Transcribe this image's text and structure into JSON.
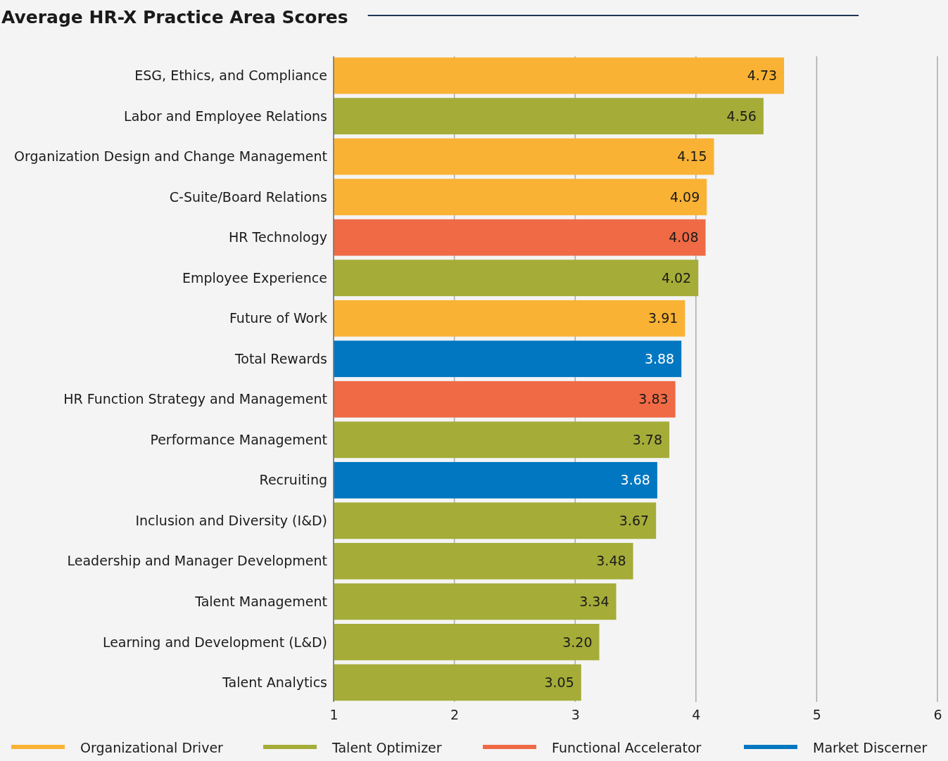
{
  "chart_data": {
    "type": "bar",
    "title": "Average HR-X Practice Area Scores",
    "orientation": "horizontal",
    "categories": [
      "ESG, Ethics, and Compliance",
      "Labor and Employee Relations",
      "Organization Design and Change Management",
      "C-Suite/Board Relations",
      "HR Technology",
      "Employee Experience",
      "Future of Work",
      "Total Rewards",
      "HR Function Strategy and Management",
      "Performance Management",
      "Recruiting",
      "Inclusion and Diversity (I&D)",
      "Leadership and Manager Development",
      "Talent Management",
      "Learning and Development (L&D)",
      "Talent Analytics"
    ],
    "series": [
      {
        "name": "Organizational Driver",
        "color": "#f9b233",
        "values": [
          4.73,
          null,
          4.15,
          4.09,
          null,
          null,
          3.91,
          null,
          null,
          null,
          null,
          null,
          null,
          null,
          null,
          null
        ],
        "value_labels": [
          "4.73",
          null,
          "4.15",
          "4.09",
          null,
          null,
          "3.91",
          null,
          null,
          null,
          null,
          null,
          null,
          null,
          null,
          null
        ]
      },
      {
        "name": "Talent Optimizer",
        "color": "#a5ac38",
        "values": [
          null,
          4.56,
          null,
          null,
          null,
          4.02,
          null,
          null,
          null,
          3.78,
          null,
          3.67,
          3.48,
          3.34,
          3.2,
          3.05
        ],
        "value_labels": [
          null,
          "4.56",
          null,
          null,
          null,
          "4.02",
          null,
          null,
          null,
          "3.78",
          null,
          "3.67",
          "3.48",
          "3.34",
          "3.20",
          "3.05"
        ]
      },
      {
        "name": "Functional Accelerator",
        "color": "#ef6a45",
        "values": [
          null,
          null,
          null,
          null,
          4.08,
          null,
          null,
          null,
          3.83,
          null,
          null,
          null,
          null,
          null,
          null,
          null
        ],
        "value_labels": [
          null,
          null,
          null,
          null,
          "4.08",
          null,
          null,
          null,
          "3.83",
          null,
          null,
          null,
          null,
          null,
          null,
          null
        ]
      },
      {
        "name": "Market Discerner",
        "color": "#0077c0",
        "values": [
          null,
          null,
          null,
          null,
          null,
          null,
          null,
          3.88,
          null,
          null,
          3.68,
          null,
          null,
          null,
          null,
          null
        ],
        "value_labels": [
          null,
          null,
          null,
          null,
          null,
          null,
          null,
          "3.88",
          null,
          null,
          "3.68",
          null,
          null,
          null,
          null,
          null
        ]
      }
    ],
    "xlim": [
      1,
      6
    ],
    "xticks": [
      1,
      2,
      3,
      4,
      5,
      6
    ],
    "grid": "x",
    "legend": "bottom"
  }
}
